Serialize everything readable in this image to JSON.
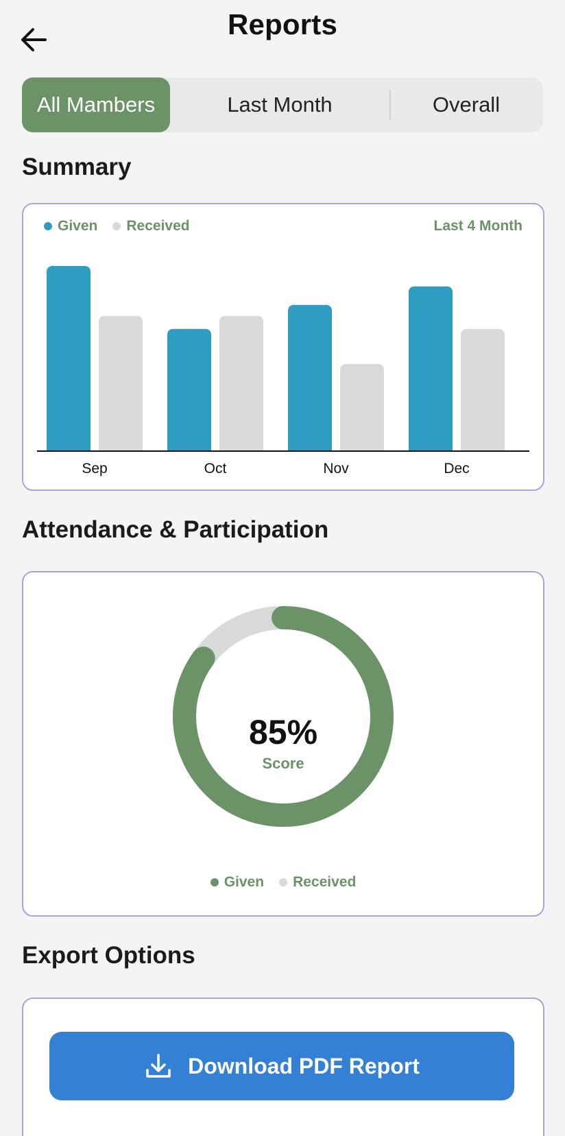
{
  "header": {
    "title": "Reports"
  },
  "tabs": [
    {
      "label": "All Mambers",
      "active": true
    },
    {
      "label": "Last Month",
      "active": false
    },
    {
      "label": "Overall",
      "active": false
    }
  ],
  "summary": {
    "title": "Summary",
    "legend": {
      "given": "Given",
      "received": "Received"
    },
    "range_label": "Last 4 Month"
  },
  "chart_data": {
    "type": "bar",
    "categories": [
      "Sep",
      "Oct",
      "Nov",
      "Dec"
    ],
    "series": [
      {
        "name": "Given",
        "values": [
          100,
          66,
          79,
          89
        ],
        "color": "#2f9cc2"
      },
      {
        "name": "Received",
        "values": [
          73,
          73,
          47,
          66
        ],
        "color": "#d8d9d9"
      }
    ],
    "ylim": [
      0,
      100
    ],
    "grid": false,
    "legend_position": "top-left"
  },
  "attendance": {
    "title": "Attendance & Participation",
    "score_value": "85%",
    "score_label": "Score",
    "score_fraction": 0.85,
    "legend": {
      "given": "Given",
      "received": "Received"
    },
    "colors": {
      "given": "#6b9367",
      "received": "#d8d9d9"
    }
  },
  "export": {
    "title": "Export Options",
    "download_label": "Download PDF Report"
  },
  "colors": {
    "accent": "#6b9367",
    "button": "#3480d4",
    "card_border": "#a8a4d8"
  },
  "icons": {
    "back": "arrow-left-icon",
    "download": "download-icon"
  }
}
